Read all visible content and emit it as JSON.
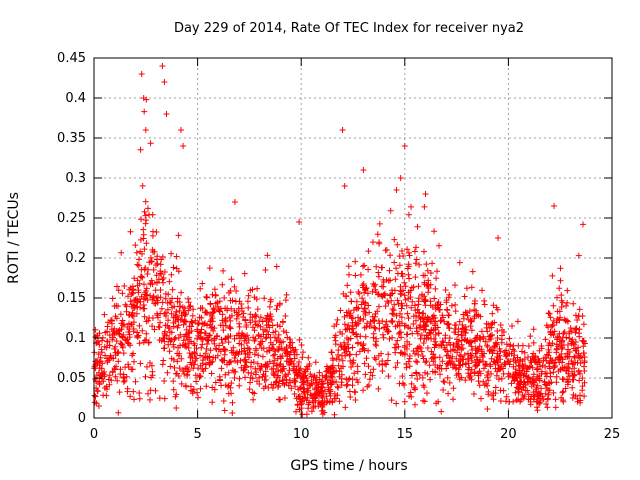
{
  "chart_data": {
    "type": "scatter",
    "title": "Day 229 of 2014, Rate Of TEC Index for receiver nya2",
    "xlabel": "GPS time / hours",
    "ylabel": "ROTI / TECUs",
    "xlim": [
      0,
      25
    ],
    "ylim": [
      0,
      0.45
    ],
    "xticks": [
      0,
      5,
      10,
      15,
      20,
      25
    ],
    "yticks": [
      0,
      0.05,
      0.1,
      0.15,
      0.2,
      0.25,
      0.3,
      0.35,
      0.4,
      0.45
    ],
    "ytick_labels": [
      "0",
      "0.05",
      "0.1",
      "0.15",
      "0.2",
      "0.25",
      "0.3",
      "0.35",
      "0.4",
      "0.45"
    ],
    "grid": true,
    "marker": "+",
    "color": "#ff0000",
    "data_x_range": [
      0,
      23.7
    ],
    "envelope": {
      "hours": [
        0,
        0.5,
        1,
        1.5,
        2,
        2.3,
        2.6,
        3,
        3.5,
        4,
        4.5,
        5,
        5.5,
        6,
        6.5,
        7,
        7.5,
        8,
        8.5,
        9,
        9.5,
        10,
        10.5,
        11,
        11.5,
        12,
        12.5,
        13,
        13.5,
        14,
        14.5,
        15,
        15.5,
        16,
        16.5,
        17,
        17.5,
        18,
        18.5,
        19,
        19.5,
        20,
        20.5,
        21,
        21.5,
        22,
        22.5,
        23,
        23.5,
        23.7
      ],
      "typical": [
        0.06,
        0.075,
        0.09,
        0.1,
        0.12,
        0.16,
        0.15,
        0.13,
        0.12,
        0.1,
        0.09,
        0.09,
        0.1,
        0.1,
        0.09,
        0.1,
        0.09,
        0.09,
        0.09,
        0.08,
        0.07,
        0.04,
        0.03,
        0.03,
        0.05,
        0.08,
        0.1,
        0.12,
        0.12,
        0.12,
        0.13,
        0.13,
        0.12,
        0.11,
        0.1,
        0.09,
        0.09,
        0.09,
        0.08,
        0.08,
        0.08,
        0.06,
        0.05,
        0.05,
        0.05,
        0.07,
        0.09,
        0.08,
        0.08,
        0.07
      ],
      "spread": [
        0.05,
        0.06,
        0.07,
        0.07,
        0.09,
        0.12,
        0.13,
        0.11,
        0.1,
        0.08,
        0.07,
        0.07,
        0.07,
        0.08,
        0.08,
        0.08,
        0.07,
        0.07,
        0.07,
        0.07,
        0.06,
        0.05,
        0.03,
        0.03,
        0.06,
        0.08,
        0.09,
        0.09,
        0.1,
        0.1,
        0.11,
        0.11,
        0.1,
        0.09,
        0.08,
        0.07,
        0.07,
        0.07,
        0.07,
        0.07,
        0.06,
        0.05,
        0.04,
        0.04,
        0.05,
        0.07,
        0.08,
        0.07,
        0.07,
        0.06
      ]
    },
    "notable_points": [
      {
        "x": 2.3,
        "y": 0.43
      },
      {
        "x": 2.4,
        "y": 0.4
      },
      {
        "x": 2.5,
        "y": 0.36
      },
      {
        "x": 3.3,
        "y": 0.44
      },
      {
        "x": 3.4,
        "y": 0.42
      },
      {
        "x": 3.5,
        "y": 0.38
      },
      {
        "x": 4.2,
        "y": 0.36
      },
      {
        "x": 4.3,
        "y": 0.34
      },
      {
        "x": 12.0,
        "y": 0.36
      },
      {
        "x": 12.1,
        "y": 0.29
      },
      {
        "x": 13.0,
        "y": 0.31
      },
      {
        "x": 15.0,
        "y": 0.34
      },
      {
        "x": 14.8,
        "y": 0.3
      },
      {
        "x": 14.6,
        "y": 0.285
      },
      {
        "x": 16.0,
        "y": 0.28
      },
      {
        "x": 6.8,
        "y": 0.27
      },
      {
        "x": 9.9,
        "y": 0.245
      },
      {
        "x": 22.2,
        "y": 0.265
      },
      {
        "x": 23.6,
        "y": 0.242
      },
      {
        "x": 19.5,
        "y": 0.225
      }
    ]
  }
}
